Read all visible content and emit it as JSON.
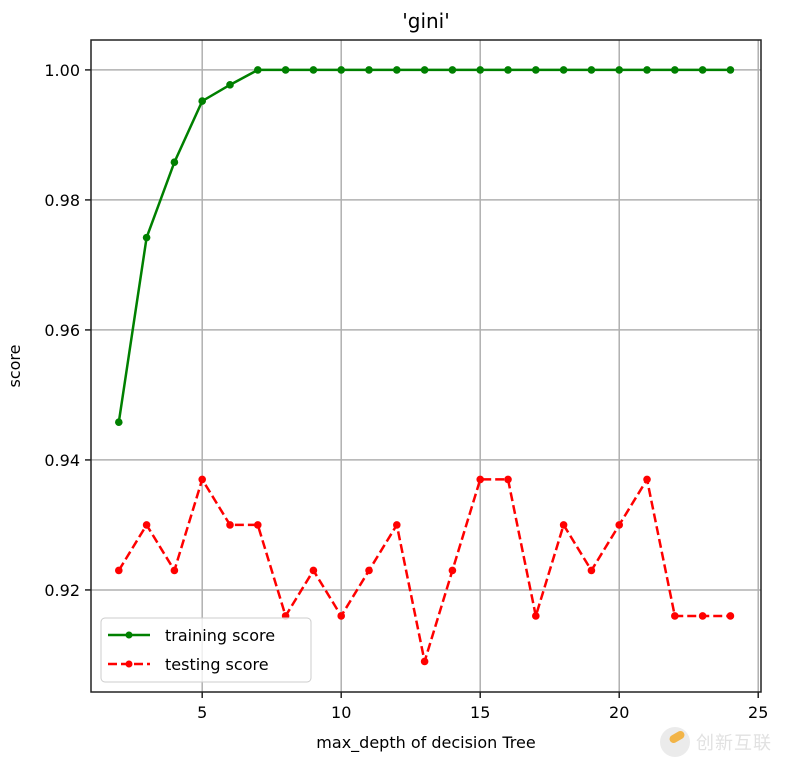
{
  "chart_data": {
    "type": "line",
    "title": "'gini'",
    "xlabel": "max_depth of decision Tree",
    "ylabel": "score",
    "xlim": [
      1.0,
      25.1
    ],
    "ylim": [
      0.9043,
      1.0046
    ],
    "grid": true,
    "legend_position": "lower left",
    "x_ticks": [
      5,
      10,
      15,
      20,
      25
    ],
    "x_tick_labels": [
      "5",
      "10",
      "15",
      "20",
      "25"
    ],
    "y_ticks": [
      0.92,
      0.94,
      0.96,
      0.98,
      1.0
    ],
    "y_tick_labels": [
      "0.92",
      "0.94",
      "0.96",
      "0.98",
      "1.00"
    ],
    "x": [
      2,
      3,
      4,
      5,
      6,
      7,
      8,
      9,
      10,
      11,
      12,
      13,
      14,
      15,
      16,
      17,
      18,
      19,
      20,
      21,
      22,
      23,
      24
    ],
    "series": [
      {
        "name": "training score",
        "color": "#008000",
        "linestyle": "solid",
        "marker": "o",
        "values": [
          0.9458,
          0.9742,
          0.9858,
          0.9952,
          0.9977,
          1.0,
          1.0,
          1.0,
          1.0,
          1.0,
          1.0,
          1.0,
          1.0,
          1.0,
          1.0,
          1.0,
          1.0,
          1.0,
          1.0,
          1.0,
          1.0,
          1.0,
          1.0
        ]
      },
      {
        "name": "testing score",
        "color": "#ff0000",
        "linestyle": "dashed",
        "marker": "o",
        "values": [
          0.923,
          0.93,
          0.923,
          0.937,
          0.93,
          0.93,
          0.916,
          0.923,
          0.916,
          0.923,
          0.93,
          0.909,
          0.923,
          0.937,
          0.937,
          0.916,
          0.93,
          0.923,
          0.93,
          0.937,
          0.916,
          0.916,
          0.916
        ]
      }
    ]
  },
  "watermark": {
    "text": "创新互联"
  }
}
